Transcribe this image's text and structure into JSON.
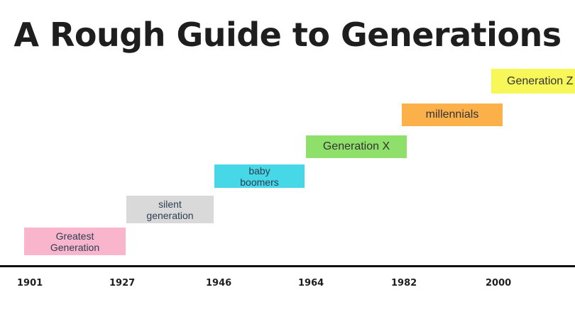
{
  "title": "A Rough Guide to Generations",
  "generations": [
    {
      "label": "Greatest\nGeneration",
      "start": 1901,
      "end": 1927,
      "color": "#f8b5cc"
    },
    {
      "label": "silent\ngeneration",
      "start": 1927,
      "end": 1946,
      "color": "#d9d9d9"
    },
    {
      "label": "baby\nboomers",
      "start": 1946,
      "end": 1964,
      "color": "#47d8e8"
    },
    {
      "label": "Generation X",
      "start": 1964,
      "end": 1982,
      "color": "#8ee06a"
    },
    {
      "label": "millennials",
      "start": 1982,
      "end": 2000,
      "color": "#fbb04a"
    },
    {
      "label": "Generation Z",
      "start": 2000,
      "end": null,
      "color": "#f7f75a"
    }
  ],
  "axis": {
    "ticks": [
      "1901",
      "1927",
      "1946",
      "1964",
      "1982",
      "2000"
    ]
  }
}
